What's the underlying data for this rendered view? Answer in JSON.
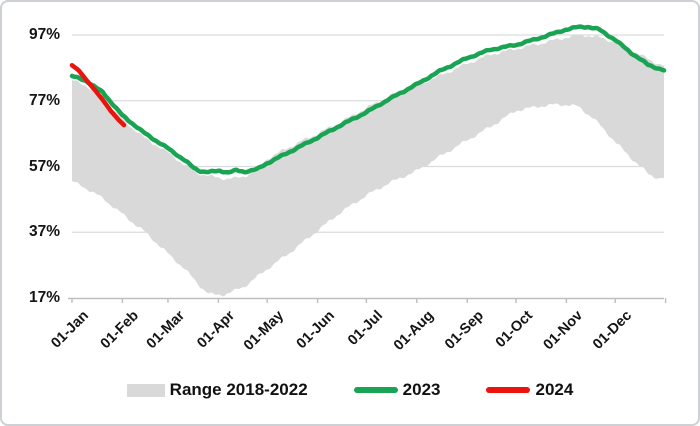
{
  "frame": {
    "background": "#ffffff",
    "border_color": "#cdd0d4"
  },
  "chart_data": {
    "type": "area",
    "subtype": "range-band-with-lines",
    "title": "",
    "xlabel": "",
    "ylabel": "",
    "grid": "horizontal",
    "legend_position": "bottom",
    "x_axis": {
      "tick_labels": [
        "01-Jan",
        "01-Feb",
        "01-Mar",
        "01-Apr",
        "01-May",
        "01-Jun",
        "01-Jul",
        "01-Aug",
        "01-Sep",
        "01-Oct",
        "01-Nov",
        "01-Dec"
      ],
      "month_start_days": [
        1,
        32,
        60,
        91,
        121,
        152,
        182,
        213,
        244,
        274,
        305,
        335,
        366
      ],
      "axis_color": "#bfbfbf"
    },
    "y_axis": {
      "tick_labels": [
        "97%",
        "77%",
        "57%",
        "37%",
        "17%"
      ],
      "tick_values": [
        97,
        77,
        57,
        37,
        17
      ],
      "min": 17,
      "max": 101,
      "gridline_color": "#dcdcdc"
    },
    "series": [
      {
        "name": "Range 2018-2022",
        "type": "band",
        "color": "#d9d9d9",
        "upper": [
          [
            1,
            83.3
          ],
          [
            10,
            81.5
          ],
          [
            20,
            78
          ],
          [
            32,
            71.3
          ],
          [
            46,
            65.5
          ],
          [
            60,
            61.3
          ],
          [
            70,
            57.5
          ],
          [
            78,
            55
          ],
          [
            88,
            53.8
          ],
          [
            95,
            53.3
          ],
          [
            102,
            53.4
          ],
          [
            108,
            54.2
          ],
          [
            115,
            56.5
          ],
          [
            121,
            59.3
          ],
          [
            135,
            63
          ],
          [
            152,
            67
          ],
          [
            166,
            70.5
          ],
          [
            182,
            74.8
          ],
          [
            196,
            78.3
          ],
          [
            213,
            81.7
          ],
          [
            227,
            84.5
          ],
          [
            244,
            88.3
          ],
          [
            258,
            91
          ],
          [
            274,
            92.8
          ],
          [
            288,
            94.3
          ],
          [
            305,
            96.3
          ],
          [
            315,
            97
          ],
          [
            325,
            96.3
          ],
          [
            335,
            94.8
          ],
          [
            342,
            93.2
          ],
          [
            350,
            91
          ],
          [
            358,
            89
          ],
          [
            365,
            87.6
          ]
        ],
        "lower": [
          [
            1,
            52.5
          ],
          [
            10,
            50.3
          ],
          [
            20,
            47.3
          ],
          [
            32,
            42.5
          ],
          [
            46,
            37
          ],
          [
            60,
            30.5
          ],
          [
            70,
            26
          ],
          [
            80,
            20.5
          ],
          [
            85,
            18.3
          ],
          [
            90,
            17.9
          ],
          [
            95,
            18.1
          ],
          [
            100,
            19
          ],
          [
            107,
            20.5
          ],
          [
            121,
            25.8
          ],
          [
            135,
            30.8
          ],
          [
            152,
            37.5
          ],
          [
            166,
            43
          ],
          [
            182,
            48.2
          ],
          [
            196,
            52
          ],
          [
            213,
            55.7
          ],
          [
            227,
            60
          ],
          [
            244,
            65
          ],
          [
            258,
            69
          ],
          [
            274,
            74
          ],
          [
            288,
            75.3
          ],
          [
            298,
            75.8
          ],
          [
            305,
            75.8
          ],
          [
            312,
            75.3
          ],
          [
            322,
            71.5
          ],
          [
            335,
            64.5
          ],
          [
            345,
            59.5
          ],
          [
            356,
            54.5
          ],
          [
            362,
            53.4
          ],
          [
            365,
            53.5
          ]
        ]
      },
      {
        "name": "2023",
        "type": "line",
        "color": "#18a452",
        "stroke_width": 4.5,
        "points": [
          [
            1,
            84.5
          ],
          [
            10,
            83
          ],
          [
            20,
            79.5
          ],
          [
            32,
            72.5
          ],
          [
            46,
            67
          ],
          [
            60,
            62.5
          ],
          [
            70,
            59
          ],
          [
            76,
            56.5
          ],
          [
            80,
            55.6
          ],
          [
            85,
            55.3
          ],
          [
            92,
            55.7
          ],
          [
            97,
            55.2
          ],
          [
            102,
            55.8
          ],
          [
            107,
            55.4
          ],
          [
            115,
            56.2
          ],
          [
            121,
            58
          ],
          [
            135,
            61.5
          ],
          [
            152,
            65.8
          ],
          [
            166,
            69.5
          ],
          [
            182,
            73.5
          ],
          [
            196,
            77.5
          ],
          [
            213,
            82
          ],
          [
            227,
            86
          ],
          [
            244,
            90
          ],
          [
            258,
            92.5
          ],
          [
            274,
            94
          ],
          [
            288,
            96
          ],
          [
            305,
            98.7
          ],
          [
            312,
            99.4
          ],
          [
            318,
            99.5
          ],
          [
            325,
            98.7
          ],
          [
            335,
            95.5
          ],
          [
            345,
            91.5
          ],
          [
            355,
            88
          ],
          [
            365,
            86.2
          ]
        ]
      },
      {
        "name": "2024",
        "type": "line",
        "color": "#e8140d",
        "stroke_width": 4.5,
        "points": [
          [
            1,
            87.8
          ],
          [
            5,
            86.3
          ],
          [
            10,
            83.2
          ],
          [
            15,
            80.3
          ],
          [
            20,
            77.2
          ],
          [
            25,
            73.8
          ],
          [
            30,
            71
          ],
          [
            33,
            69.6
          ]
        ]
      }
    ]
  }
}
